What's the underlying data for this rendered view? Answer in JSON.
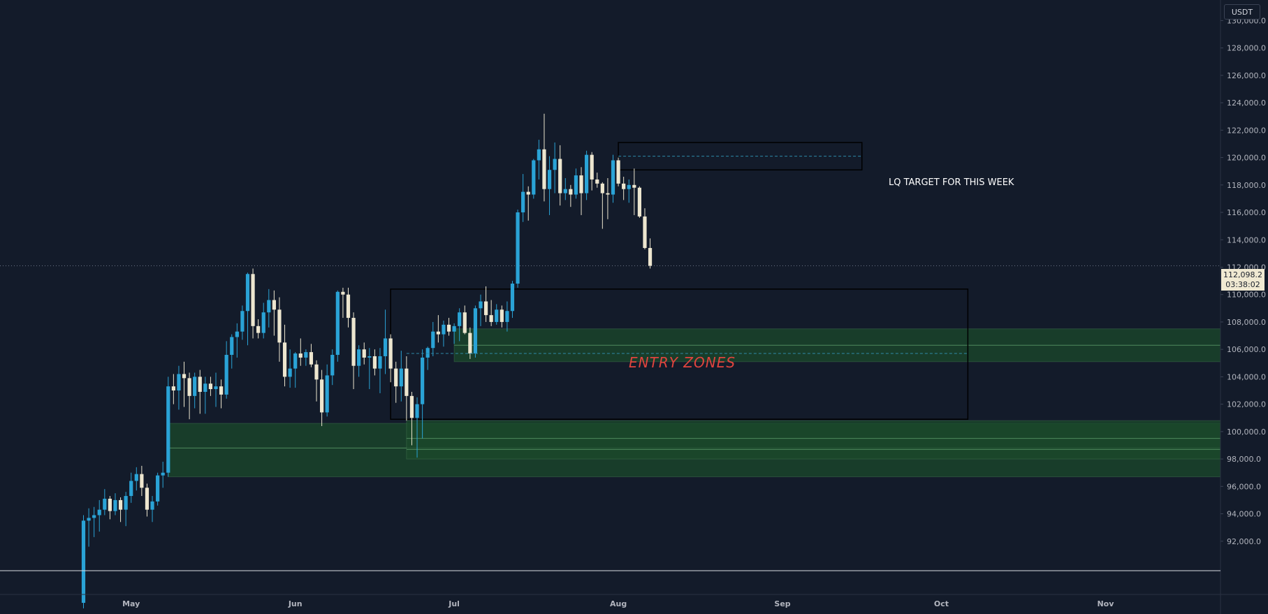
{
  "currency": "USDT",
  "current_price": {
    "value": "112,098.2",
    "countdown": "03:38:02"
  },
  "annotations": {
    "lq_target": "LQ TARGET FOR THIS WEEK",
    "entry_zones": "ENTRY ZONES"
  },
  "colors": {
    "background": "#131b2a",
    "bull": "#2aa3d6",
    "bear": "#ede6cf",
    "zone_fill": "#1b4a2b",
    "zone_line": "#4f8a5e",
    "box": "#000000",
    "dash": "#2e8aa8",
    "entry_text": "#e0443e",
    "axis_text": "#b2b5be"
  },
  "chart_data": {
    "type": "candlestick",
    "title": "",
    "ylim": [
      90000,
      131500
    ],
    "y_ticks": [
      92000,
      94000,
      96000,
      98000,
      100000,
      102000,
      104000,
      106000,
      108000,
      110000,
      112000,
      114000,
      116000,
      118000,
      120000,
      122000,
      124000,
      126000,
      128000,
      130000
    ],
    "y_tick_labels": [
      "92,000.0",
      "94,000.0",
      "96,000.0",
      "98,000.0",
      "100,000.0",
      "102,000.0",
      "104,000.0",
      "106,000.0",
      "108,000.0",
      "110,000.0",
      "112,000.0",
      "114,000.0",
      "116,000.0",
      "118,000.0",
      "120,000.0",
      "122,000.0",
      "124,000.0",
      "126,000.0",
      "128,000.0",
      "130,000.0"
    ],
    "x_labels": [
      "May",
      "Jun",
      "Jul",
      "Aug",
      "Sep",
      "Oct",
      "Nov"
    ],
    "first_candle": "2025-04-22",
    "ohlc": [
      [
        87500,
        93900,
        87100,
        93500
      ],
      [
        93500,
        94400,
        91600,
        93700
      ],
      [
        93700,
        94500,
        92300,
        93900
      ],
      [
        93900,
        95000,
        92700,
        94300
      ],
      [
        94300,
        95800,
        93900,
        95100
      ],
      [
        95100,
        95300,
        93600,
        94200
      ],
      [
        94200,
        95500,
        93900,
        95000
      ],
      [
        95000,
        95200,
        93400,
        94300
      ],
      [
        94300,
        95600,
        93100,
        95300
      ],
      [
        95300,
        97000,
        94800,
        96400
      ],
      [
        96400,
        97400,
        95700,
        96900
      ],
      [
        96900,
        97500,
        95300,
        95900
      ],
      [
        95900,
        96200,
        93800,
        94300
      ],
      [
        94300,
        95300,
        93400,
        94900
      ],
      [
        94900,
        97000,
        94600,
        96800
      ],
      [
        96800,
        97800,
        95900,
        97000
      ],
      [
        97000,
        104000,
        96700,
        103300
      ],
      [
        103300,
        104200,
        102000,
        103000
      ],
      [
        103000,
        104800,
        101600,
        104200
      ],
      [
        104200,
        105100,
        101800,
        103900
      ],
      [
        103900,
        104300,
        100900,
        102600
      ],
      [
        102600,
        104300,
        101700,
        104000
      ],
      [
        104000,
        104500,
        101300,
        102900
      ],
      [
        102900,
        104000,
        101300,
        103500
      ],
      [
        103500,
        104000,
        102600,
        103100
      ],
      [
        103100,
        104300,
        101800,
        103300
      ],
      [
        103300,
        103800,
        101700,
        102700
      ],
      [
        102700,
        106600,
        102400,
        105600
      ],
      [
        105600,
        107100,
        104600,
        106900
      ],
      [
        106900,
        107900,
        105400,
        107300
      ],
      [
        107300,
        109200,
        106700,
        108800
      ],
      [
        108800,
        111600,
        106300,
        111500
      ],
      [
        111500,
        111900,
        106800,
        107700
      ],
      [
        107700,
        108200,
        106800,
        107200
      ],
      [
        107200,
        109400,
        106800,
        108700
      ],
      [
        108700,
        110400,
        107600,
        109600
      ],
      [
        109600,
        110300,
        107000,
        108900
      ],
      [
        108900,
        109800,
        105100,
        106500
      ],
      [
        106500,
        107800,
        103300,
        104000
      ],
      [
        104000,
        106000,
        103200,
        104600
      ],
      [
        104600,
        105800,
        103200,
        105700
      ],
      [
        105700,
        106800,
        104800,
        105400
      ],
      [
        105400,
        106000,
        104800,
        105800
      ],
      [
        105800,
        106400,
        104700,
        104900
      ],
      [
        104900,
        105200,
        102200,
        103800
      ],
      [
        103800,
        104500,
        100400,
        101400
      ],
      [
        101400,
        104900,
        101100,
        104100
      ],
      [
        104100,
        106000,
        103400,
        105600
      ],
      [
        105600,
        110300,
        105100,
        110200
      ],
      [
        110200,
        110500,
        108300,
        110000
      ],
      [
        110000,
        110500,
        107600,
        108300
      ],
      [
        108300,
        108700,
        103100,
        104800
      ],
      [
        104800,
        106300,
        104000,
        106000
      ],
      [
        106000,
        106500,
        104900,
        105400
      ],
      [
        105400,
        106100,
        103100,
        105500
      ],
      [
        105500,
        106000,
        104100,
        104600
      ],
      [
        104600,
        106100,
        102800,
        105500
      ],
      [
        105500,
        108900,
        104200,
        106800
      ],
      [
        106800,
        107100,
        103600,
        104600
      ],
      [
        104600,
        105100,
        102100,
        103300
      ],
      [
        103300,
        105900,
        102200,
        104600
      ],
      [
        104600,
        105500,
        100800,
        102600
      ],
      [
        102600,
        102900,
        99000,
        101000
      ],
      [
        101000,
        102500,
        98100,
        102000
      ],
      [
        102000,
        106000,
        99500,
        105400
      ],
      [
        105400,
        106200,
        104500,
        106100
      ],
      [
        106100,
        108000,
        105500,
        107300
      ],
      [
        107300,
        108500,
        106500,
        107100
      ],
      [
        107100,
        108100,
        106200,
        107800
      ],
      [
        107800,
        108300,
        107000,
        107300
      ],
      [
        107300,
        107900,
        106400,
        107700
      ],
      [
        107700,
        109000,
        106600,
        108700
      ],
      [
        108700,
        109200,
        107100,
        107200
      ],
      [
        107200,
        107600,
        105300,
        105700
      ],
      [
        105700,
        109200,
        105400,
        109000
      ],
      [
        109000,
        110000,
        107700,
        109500
      ],
      [
        109500,
        110600,
        108000,
        108500
      ],
      [
        108500,
        109600,
        107700,
        108000
      ],
      [
        108000,
        109300,
        107800,
        108900
      ],
      [
        108900,
        109200,
        107600,
        108000
      ],
      [
        108000,
        109500,
        107300,
        108800
      ],
      [
        108800,
        111000,
        108300,
        110800
      ],
      [
        110800,
        116200,
        110500,
        116000
      ],
      [
        116000,
        118800,
        115300,
        117500
      ],
      [
        117500,
        117900,
        115400,
        117300
      ],
      [
        117300,
        119900,
        117000,
        119800
      ],
      [
        119800,
        121300,
        118400,
        120600
      ],
      [
        120600,
        123200,
        116800,
        117700
      ],
      [
        117700,
        120100,
        115800,
        119100
      ],
      [
        119100,
        121100,
        117400,
        119900
      ],
      [
        119900,
        120900,
        116500,
        117400
      ],
      [
        117400,
        118500,
        116900,
        117700
      ],
      [
        117700,
        118000,
        116400,
        117300
      ],
      [
        117300,
        119200,
        117000,
        118700
      ],
      [
        118700,
        119300,
        115800,
        117400
      ],
      [
        117400,
        120500,
        116900,
        120200
      ],
      [
        120200,
        120400,
        117600,
        118400
      ],
      [
        118400,
        118900,
        117800,
        118100
      ],
      [
        118100,
        118200,
        114800,
        117400
      ],
      [
        117400,
        118500,
        115500,
        117300
      ],
      [
        117300,
        120200,
        116700,
        119800
      ],
      [
        119800,
        120000,
        117900,
        118100
      ],
      [
        118100,
        118600,
        116900,
        117700
      ],
      [
        117700,
        118400,
        116700,
        118000
      ],
      [
        118000,
        119200,
        115800,
        117800
      ],
      [
        117800,
        117900,
        115600,
        115700
      ],
      [
        115700,
        116300,
        113300,
        113400
      ],
      [
        113400,
        114100,
        111900,
        112100
      ]
    ],
    "zones": [
      {
        "type": "demand",
        "from": "2025-05-08",
        "to": "end",
        "top": 100600,
        "bottom": 96700,
        "lines": [
          98800
        ]
      },
      {
        "type": "demand",
        "from": "2025-06-22",
        "to": "end",
        "top": 100800,
        "bottom": 98000,
        "lines": [
          99500,
          98700
        ]
      },
      {
        "type": "demand",
        "from": "2025-07-01",
        "to": "end",
        "top": 107500,
        "bottom": 105100,
        "lines": [
          106300
        ]
      }
    ],
    "boxes": [
      {
        "from": "2025-06-19",
        "to": "2025-10-06",
        "top": 110400,
        "bottom": 100900
      },
      {
        "from": "2025-08-01",
        "to": "2025-09-16",
        "top": 121100,
        "bottom": 119100
      }
    ],
    "dashed_lines": [
      {
        "from": "2025-06-22",
        "to": "2025-10-06",
        "value": 105700
      },
      {
        "from": "2025-08-01",
        "to": "2025-09-16",
        "value": 120100
      }
    ],
    "current_price_line": 112098.2
  }
}
